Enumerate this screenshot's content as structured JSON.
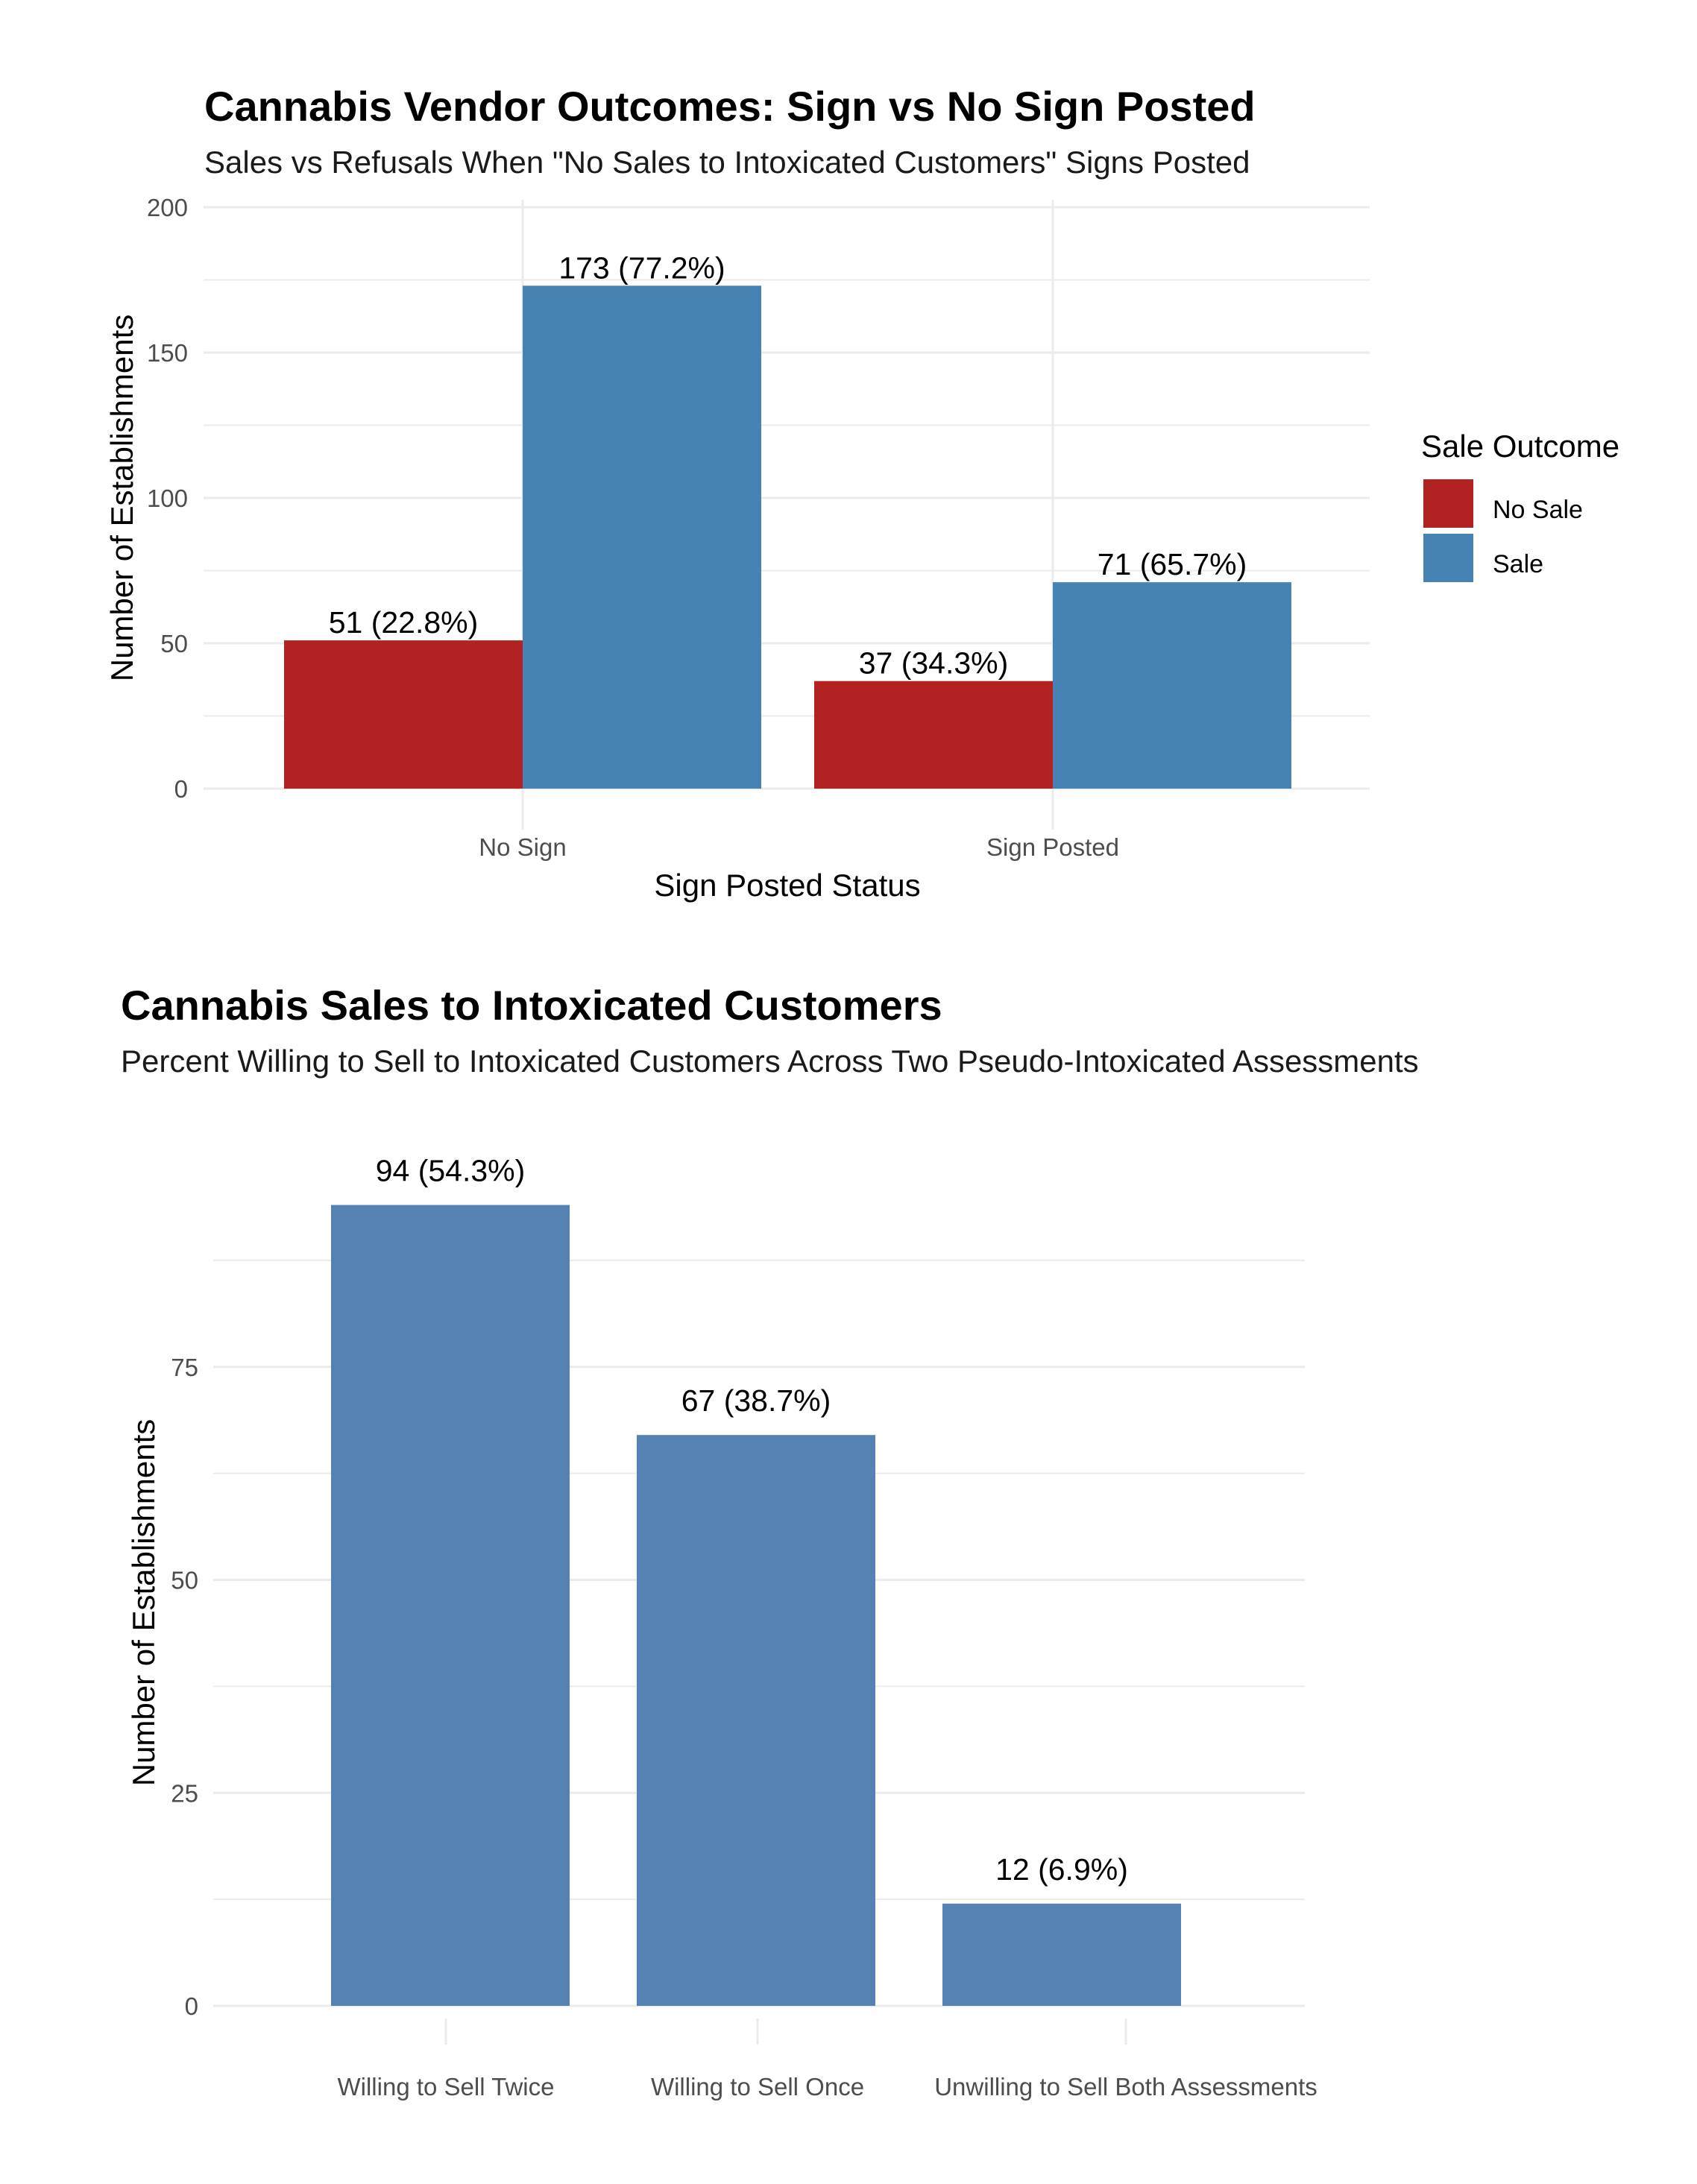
{
  "chart_data": [
    {
      "type": "bar",
      "title": "Cannabis Vendor Outcomes: Sign vs No Sign Posted",
      "subtitle": "Sales vs Refusals When \"No Sales to Intoxicated Customers\" Signs Posted",
      "xlabel": "Sign Posted Status",
      "ylabel": "Number of Establishments",
      "categories": [
        "No Sign",
        "Sign Posted"
      ],
      "series": [
        {
          "name": "No Sale",
          "color": "#B22222",
          "values": [
            51,
            37
          ],
          "labels": [
            "51 (22.8%)",
            "37 (34.3%)"
          ]
        },
        {
          "name": "Sale",
          "color": "#4682B4",
          "values": [
            173,
            71
          ],
          "labels": [
            "173 (77.2%)",
            "71 (65.7%)"
          ]
        }
      ],
      "ylim": [
        0,
        200
      ],
      "yticks": [
        0,
        50,
        100,
        150,
        200
      ],
      "grid": true,
      "legend": {
        "title": "Sale Outcome",
        "position": "right"
      }
    },
    {
      "type": "bar",
      "title": "Cannabis Sales to Intoxicated Customers",
      "subtitle": "Percent Willing to Sell to Intoxicated Customers Across Two Pseudo-Intoxicated Assessments",
      "xlabel": "",
      "ylabel": "Number of Establishments",
      "categories": [
        "Willing to Sell Twice",
        "Willing to Sell Once",
        "Unwilling to Sell Both Assessments"
      ],
      "values": [
        94,
        67,
        12
      ],
      "labels": [
        "94 (54.3%)",
        "67 (38.7%)",
        "12 (6.9%)"
      ],
      "color": "#5581B3",
      "ylim": [
        0,
        100
      ],
      "yticks": [
        0,
        25,
        50,
        75
      ],
      "grid": true
    }
  ]
}
